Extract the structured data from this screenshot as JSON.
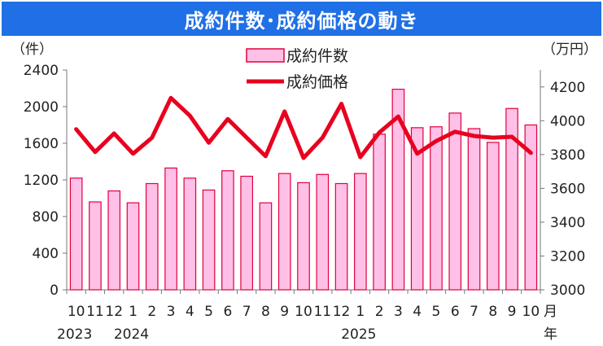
{
  "title": "成約件数･成約価格の動き",
  "chart_data": {
    "type": "bar+line",
    "categories": [
      "10",
      "11",
      "12",
      "1",
      "2",
      "3",
      "4",
      "5",
      "6",
      "7",
      "8",
      "9",
      "10",
      "11",
      "12",
      "1",
      "2",
      "3",
      "4",
      "5",
      "6",
      "7",
      "8",
      "9",
      "10"
    ],
    "year_labels": [
      {
        "label": "2023",
        "index": 0
      },
      {
        "label": "2024",
        "index": 3
      },
      {
        "label": "2025",
        "index": 15
      }
    ],
    "month_suffix": "月",
    "year_suffix": "年",
    "series": [
      {
        "name": "成約件数",
        "type": "bar",
        "axis": "left",
        "color": "#ffc0e8",
        "stroke": "#e0003c",
        "values": [
          1220,
          960,
          1080,
          950,
          1160,
          1330,
          1220,
          1090,
          1300,
          1240,
          950,
          1270,
          1170,
          1260,
          1160,
          1270,
          1700,
          2190,
          1770,
          1780,
          1930,
          1760,
          1610,
          1980,
          1800
        ]
      },
      {
        "name": "成約価格",
        "type": "line",
        "axis": "right",
        "color": "#e8001e",
        "values": [
          3950,
          3815,
          3925,
          3805,
          3900,
          4135,
          4030,
          3870,
          4010,
          3900,
          3790,
          4055,
          3780,
          3900,
          4100,
          3785,
          3930,
          4025,
          3805,
          3880,
          3935,
          3910,
          3900,
          3905,
          3810
        ]
      }
    ],
    "left_axis": {
      "unit": "（件）",
      "min": 0,
      "max": 2400,
      "ticks": [
        0,
        400,
        800,
        1200,
        1600,
        2000,
        2400
      ]
    },
    "right_axis": {
      "unit": "（万円）",
      "min": 3000,
      "max": 4300,
      "ticks": [
        3000,
        3200,
        3400,
        3600,
        3800,
        4000,
        4200
      ]
    },
    "legend": "top-center",
    "grid": false
  }
}
